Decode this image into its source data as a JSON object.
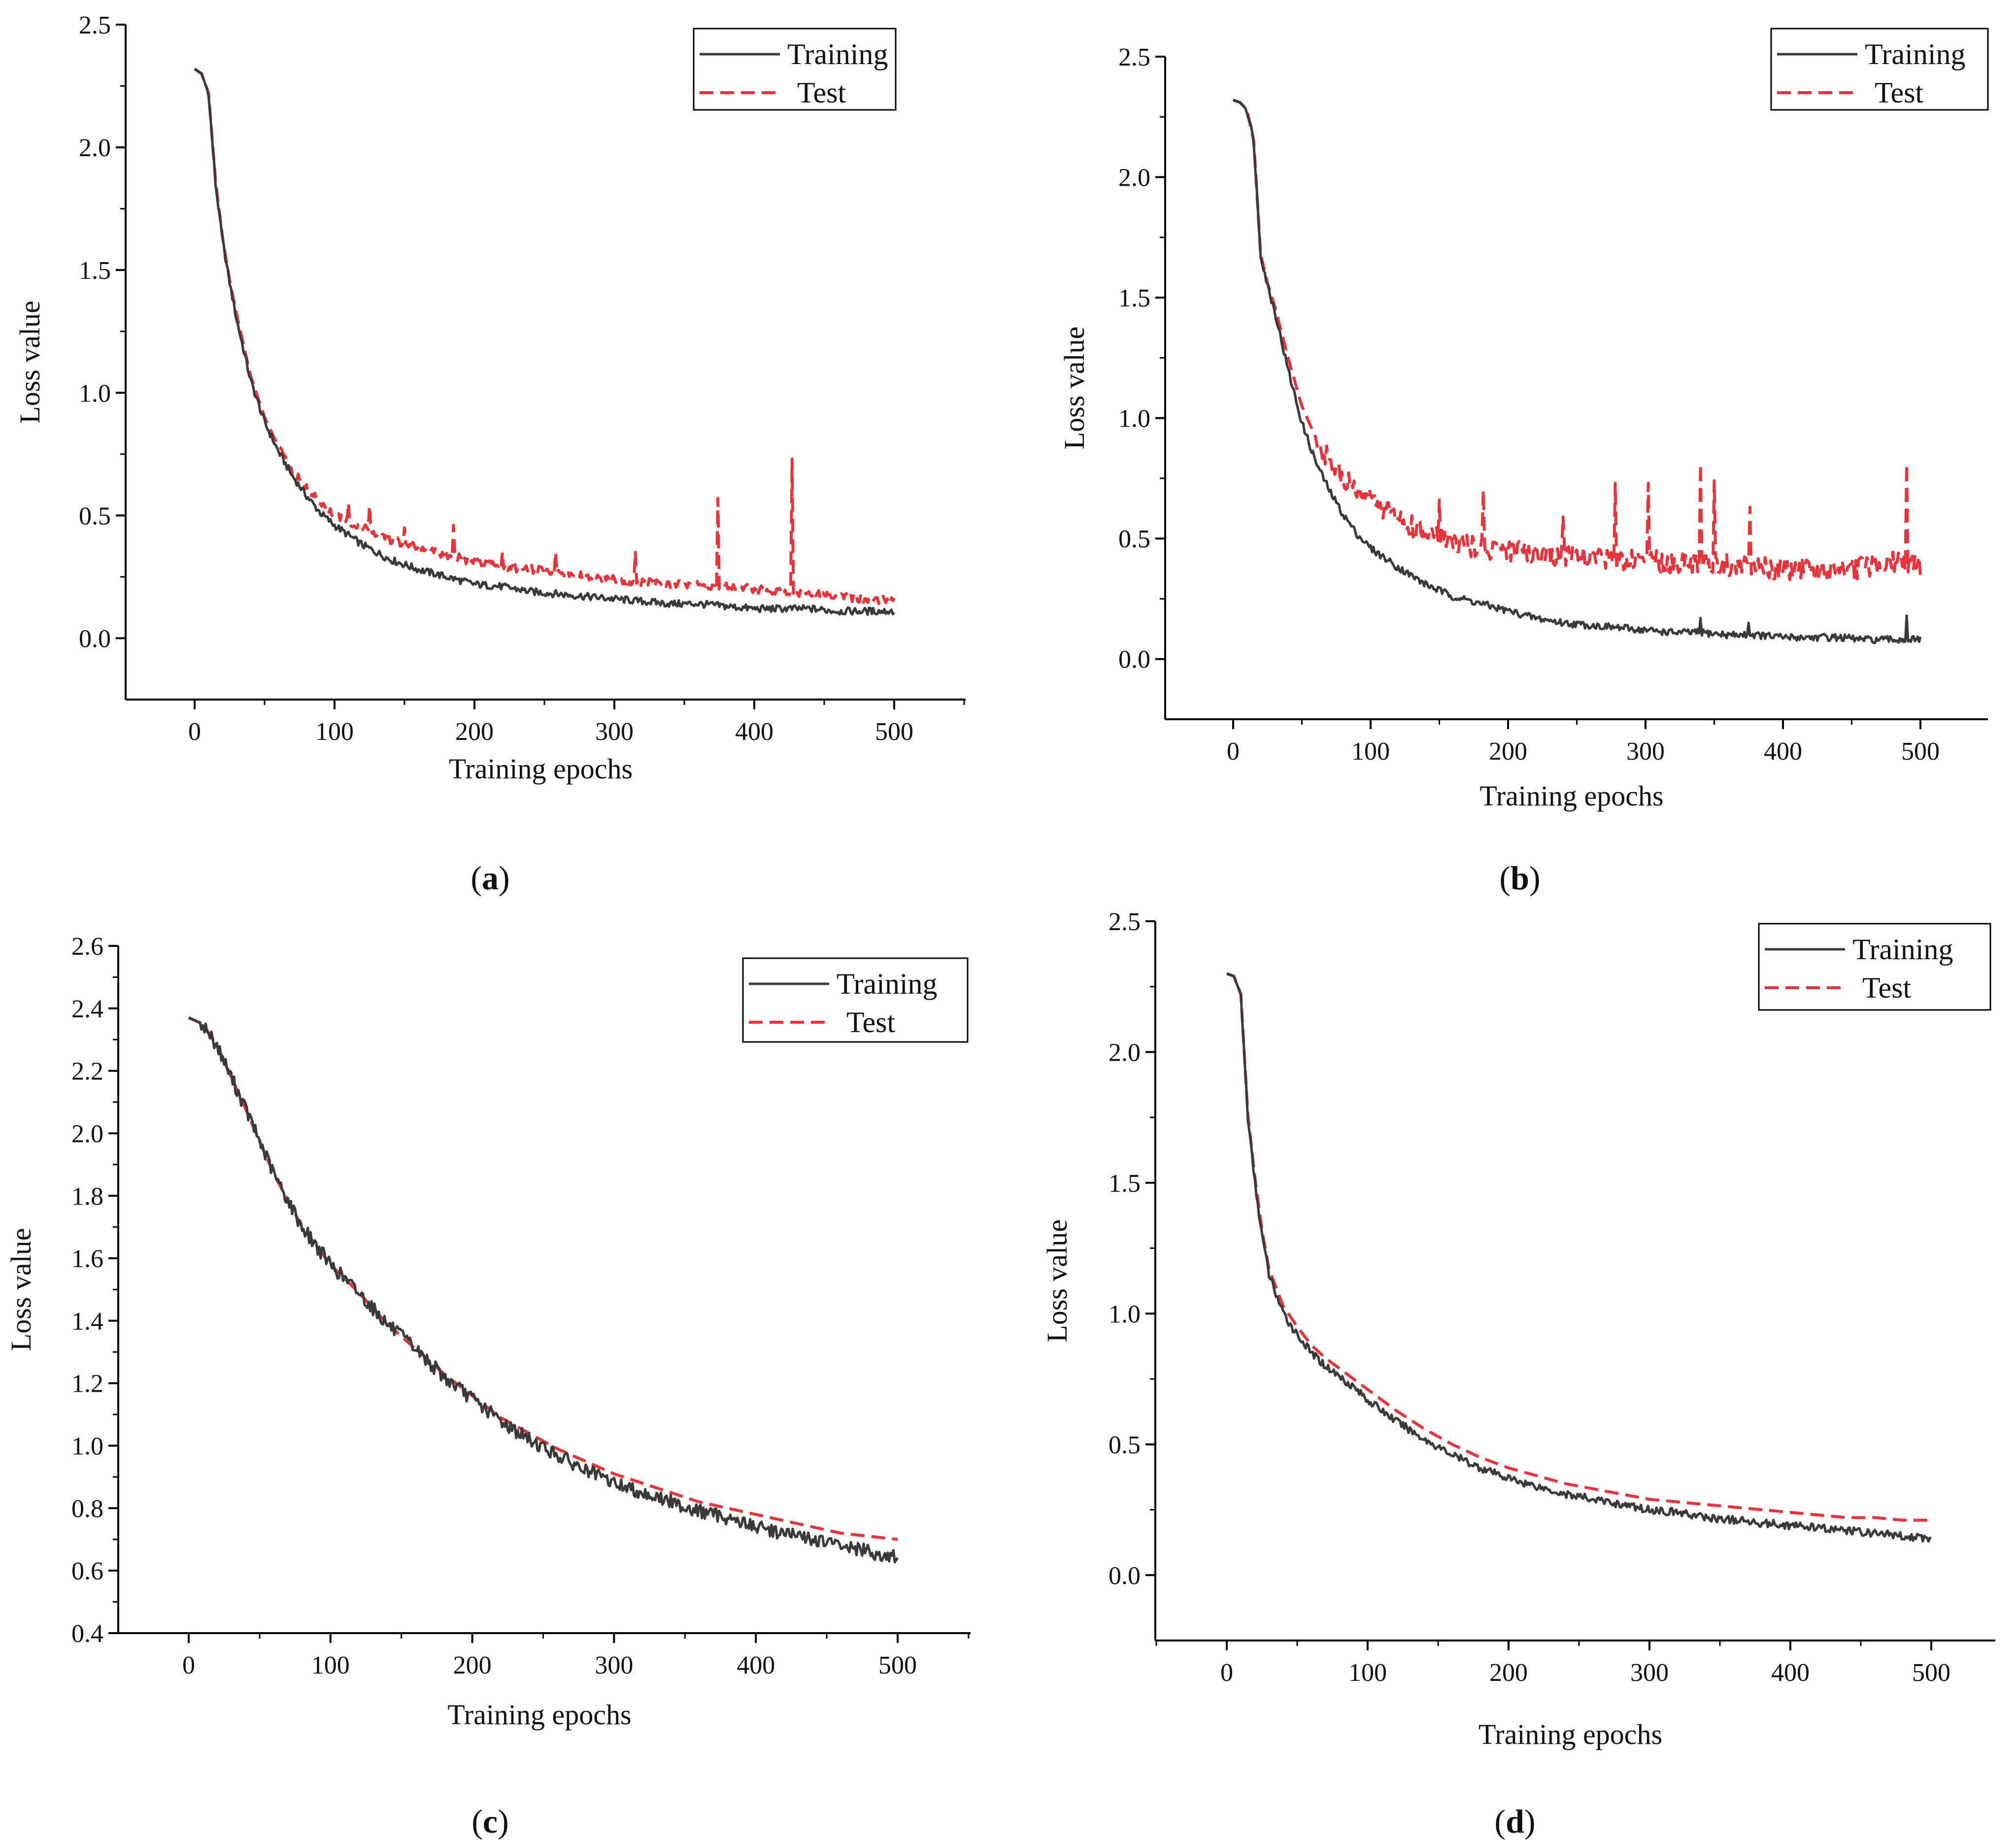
{
  "figure": {
    "panels": [
      "a",
      "b",
      "c",
      "d"
    ]
  },
  "colors": {
    "training": "#3a3a3a",
    "test": "#e8333a",
    "axis": "#000000"
  },
  "chart_data": [
    {
      "id": "a",
      "type": "line",
      "caption_letter": "a",
      "xlabel": "Training epochs",
      "ylabel": "Loss value",
      "xlim": [
        -50,
        550
      ],
      "ylim": [
        -0.25,
        2.5
      ],
      "xticks": [
        0,
        100,
        200,
        300,
        400,
        500
      ],
      "yticks": [
        0.0,
        0.5,
        1.0,
        1.5,
        2.0,
        2.5
      ],
      "ytick_labels": [
        "0.0",
        "0.5",
        "1.0",
        "1.5",
        "2.0",
        "2.5"
      ],
      "legend_position": "top-right",
      "series": [
        {
          "name": "Training",
          "x": [
            0,
            5,
            10,
            15,
            20,
            25,
            30,
            40,
            50,
            60,
            70,
            80,
            90,
            100,
            120,
            140,
            160,
            180,
            200,
            220,
            240,
            260,
            280,
            300,
            320,
            340,
            360,
            380,
            400,
            420,
            440,
            460,
            480,
            500
          ],
          "values": [
            2.32,
            2.3,
            2.22,
            1.85,
            1.62,
            1.45,
            1.3,
            1.05,
            0.88,
            0.76,
            0.66,
            0.58,
            0.51,
            0.46,
            0.38,
            0.32,
            0.28,
            0.25,
            0.22,
            0.21,
            0.19,
            0.18,
            0.17,
            0.16,
            0.15,
            0.14,
            0.14,
            0.13,
            0.12,
            0.12,
            0.12,
            0.11,
            0.11,
            0.11
          ]
        },
        {
          "name": "Test",
          "x": [
            0,
            5,
            10,
            15,
            20,
            25,
            30,
            40,
            50,
            60,
            70,
            80,
            90,
            100,
            120,
            140,
            160,
            180,
            200,
            220,
            240,
            260,
            280,
            300,
            320,
            340,
            360,
            380,
            400,
            420,
            440,
            460,
            480,
            500
          ],
          "values": [
            2.32,
            2.3,
            2.22,
            1.86,
            1.63,
            1.46,
            1.32,
            1.07,
            0.9,
            0.78,
            0.68,
            0.61,
            0.55,
            0.5,
            0.45,
            0.4,
            0.37,
            0.34,
            0.31,
            0.29,
            0.28,
            0.27,
            0.25,
            0.24,
            0.23,
            0.22,
            0.22,
            0.21,
            0.2,
            0.19,
            0.18,
            0.17,
            0.16,
            0.15
          ],
          "spikes": [
            [
              110,
              0.55
            ],
            [
              125,
              0.54
            ],
            [
              150,
              0.45
            ],
            [
              185,
              0.46
            ],
            [
              220,
              0.35
            ],
            [
              258,
              0.35
            ],
            [
              315,
              0.35
            ],
            [
              374,
              0.57
            ],
            [
              427,
              0.73
            ]
          ]
        }
      ]
    },
    {
      "id": "b",
      "type": "line",
      "caption_letter": "b",
      "xlabel": "Training epochs",
      "ylabel": "Loss value",
      "xlim": [
        -50,
        550
      ],
      "ylim": [
        -0.25,
        2.5
      ],
      "xticks": [
        0,
        100,
        200,
        300,
        400,
        500
      ],
      "yticks": [
        0.0,
        0.5,
        1.0,
        1.5,
        2.0,
        2.5
      ],
      "ytick_labels": [
        "0.0",
        "0.5",
        "1.0",
        "1.5",
        "2.0",
        "2.5"
      ],
      "legend_position": "top-right",
      "series": [
        {
          "name": "Training",
          "x": [
            0,
            5,
            10,
            15,
            20,
            25,
            30,
            40,
            50,
            60,
            70,
            80,
            90,
            100,
            120,
            140,
            160,
            180,
            200,
            220,
            240,
            260,
            280,
            300,
            320,
            340,
            360,
            380,
            400,
            420,
            440,
            460,
            480,
            500
          ],
          "values": [
            2.32,
            2.31,
            2.28,
            2.15,
            1.68,
            1.55,
            1.45,
            1.2,
            0.98,
            0.82,
            0.7,
            0.6,
            0.52,
            0.46,
            0.38,
            0.31,
            0.26,
            0.23,
            0.2,
            0.17,
            0.15,
            0.14,
            0.13,
            0.12,
            0.11,
            0.11,
            0.1,
            0.1,
            0.09,
            0.09,
            0.09,
            0.08,
            0.08,
            0.08
          ],
          "spikes": [
            [
              340,
              0.17
            ],
            [
              375,
              0.15
            ],
            [
              490,
              0.18
            ]
          ]
        },
        {
          "name": "Test",
          "x": [
            0,
            5,
            10,
            15,
            20,
            25,
            30,
            40,
            50,
            60,
            70,
            80,
            90,
            100,
            120,
            140,
            160,
            180,
            200,
            220,
            240,
            260,
            280,
            300,
            320,
            340,
            360,
            380,
            400,
            420,
            440,
            460,
            480,
            500
          ],
          "values": [
            2.32,
            2.31,
            2.28,
            2.15,
            1.68,
            1.56,
            1.47,
            1.25,
            1.05,
            0.92,
            0.82,
            0.75,
            0.7,
            0.66,
            0.58,
            0.52,
            0.48,
            0.46,
            0.45,
            0.44,
            0.43,
            0.42,
            0.41,
            0.41,
            0.4,
            0.4,
            0.39,
            0.39,
            0.37,
            0.37,
            0.37,
            0.38,
            0.4,
            0.38
          ],
          "spikes": [
            [
              150,
              0.66
            ],
            [
              182,
              0.7
            ],
            [
              240,
              0.59
            ],
            [
              278,
              0.73
            ],
            [
              302,
              0.73
            ],
            [
              340,
              0.81
            ],
            [
              350,
              0.74
            ],
            [
              376,
              0.63
            ],
            [
              490,
              0.81
            ]
          ]
        }
      ]
    },
    {
      "id": "c",
      "type": "line",
      "caption_letter": "c",
      "xlabel": "Training epochs",
      "ylabel": "Loss value",
      "xlim": [
        -50,
        550
      ],
      "ylim": [
        0.4,
        2.6
      ],
      "xticks": [
        0,
        100,
        200,
        300,
        400,
        500
      ],
      "yticks": [
        0.4,
        0.6,
        0.8,
        1.0,
        1.2,
        1.4,
        1.6,
        1.8,
        2.0,
        2.2,
        2.4,
        2.6
      ],
      "ytick_labels": [
        "0.4",
        "0.6",
        "0.8",
        "1.0",
        "1.2",
        "1.4",
        "1.6",
        "1.8",
        "2.0",
        "2.2",
        "2.4",
        "2.6"
      ],
      "legend_position": "top-right",
      "series": [
        {
          "name": "Training",
          "x": [
            0,
            10,
            20,
            30,
            40,
            60,
            80,
            100,
            120,
            140,
            160,
            180,
            200,
            220,
            240,
            260,
            280,
            300,
            320,
            340,
            360,
            380,
            400,
            420,
            440,
            460,
            480,
            500
          ],
          "values": [
            2.37,
            2.35,
            2.28,
            2.18,
            2.08,
            1.87,
            1.7,
            1.58,
            1.49,
            1.39,
            1.31,
            1.22,
            1.15,
            1.08,
            1.02,
            0.97,
            0.92,
            0.88,
            0.85,
            0.82,
            0.79,
            0.77,
            0.74,
            0.72,
            0.7,
            0.68,
            0.66,
            0.64
          ]
        },
        {
          "name": "Test",
          "x": [
            0,
            10,
            20,
            30,
            40,
            60,
            80,
            100,
            120,
            140,
            160,
            180,
            200,
            220,
            240,
            260,
            280,
            300,
            320,
            340,
            360,
            380,
            400,
            420,
            440,
            460,
            480,
            500
          ],
          "values": [
            2.37,
            2.35,
            2.28,
            2.18,
            2.08,
            1.87,
            1.7,
            1.58,
            1.49,
            1.39,
            1.31,
            1.23,
            1.16,
            1.09,
            1.04,
            0.99,
            0.95,
            0.91,
            0.88,
            0.85,
            0.82,
            0.8,
            0.78,
            0.76,
            0.74,
            0.72,
            0.71,
            0.7
          ]
        }
      ]
    },
    {
      "id": "d",
      "type": "line",
      "caption_letter": "d",
      "xlabel": "Training epochs",
      "ylabel": "Loss value",
      "xlim": [
        -50,
        550
      ],
      "ylim": [
        -0.25,
        2.5
      ],
      "xticks": [
        0,
        100,
        200,
        300,
        400,
        500
      ],
      "yticks": [
        0.0,
        0.5,
        1.0,
        1.5,
        2.0,
        2.5
      ],
      "ytick_labels": [
        "0.0",
        "0.5",
        "1.0",
        "1.5",
        "2.0",
        "2.5"
      ],
      "legend_position": "top-right",
      "series": [
        {
          "name": "Training",
          "x": [
            0,
            5,
            10,
            15,
            20,
            25,
            30,
            40,
            50,
            60,
            70,
            80,
            90,
            100,
            120,
            140,
            160,
            180,
            200,
            220,
            240,
            260,
            280,
            300,
            320,
            340,
            360,
            380,
            400,
            420,
            440,
            460,
            480,
            500
          ],
          "values": [
            2.3,
            2.29,
            2.22,
            1.75,
            1.5,
            1.3,
            1.15,
            1.0,
            0.92,
            0.85,
            0.8,
            0.76,
            0.72,
            0.67,
            0.59,
            0.52,
            0.46,
            0.41,
            0.37,
            0.34,
            0.31,
            0.29,
            0.27,
            0.25,
            0.24,
            0.22,
            0.21,
            0.2,
            0.19,
            0.18,
            0.17,
            0.16,
            0.15,
            0.14
          ]
        },
        {
          "name": "Test",
          "x": [
            0,
            5,
            10,
            15,
            20,
            25,
            30,
            40,
            50,
            60,
            70,
            80,
            90,
            100,
            120,
            140,
            160,
            180,
            200,
            220,
            240,
            260,
            280,
            300,
            320,
            340,
            360,
            380,
            400,
            420,
            440,
            460,
            480,
            500
          ],
          "values": [
            2.3,
            2.29,
            2.22,
            1.76,
            1.52,
            1.32,
            1.17,
            1.03,
            0.95,
            0.88,
            0.83,
            0.79,
            0.75,
            0.71,
            0.63,
            0.56,
            0.5,
            0.45,
            0.41,
            0.38,
            0.35,
            0.33,
            0.31,
            0.29,
            0.28,
            0.27,
            0.26,
            0.25,
            0.24,
            0.23,
            0.22,
            0.22,
            0.21,
            0.21
          ]
        }
      ]
    }
  ]
}
